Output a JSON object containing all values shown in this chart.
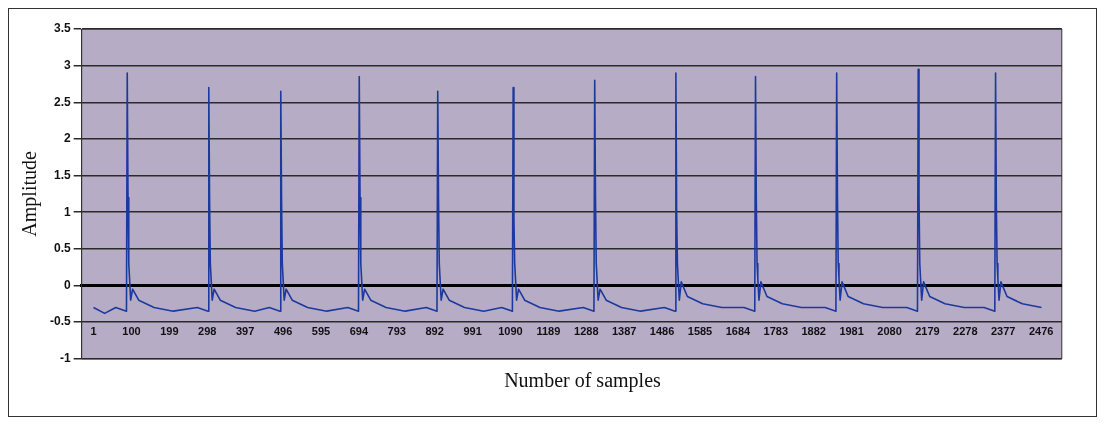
{
  "chart_data": {
    "type": "line",
    "xlabel": "Number of samples",
    "ylabel": "Amplitude",
    "xlim": [
      -30,
      2530
    ],
    "xticks": [
      1,
      100,
      199,
      298,
      397,
      496,
      595,
      694,
      793,
      892,
      991,
      1090,
      1189,
      1288,
      1387,
      1486,
      1585,
      1684,
      1783,
      1882,
      1981,
      2080,
      2179,
      2278,
      2377,
      2476
    ],
    "ylim": [
      -1,
      3.5
    ],
    "yticks": [
      -1,
      -0.5,
      0,
      0.5,
      1,
      1.5,
      2,
      2.5,
      3,
      3.5
    ],
    "grid": "y",
    "legend": false,
    "series": [
      {
        "color": "#1c3a9e",
        "x": [
          1,
          30,
          59,
          87,
          89,
          91,
          93,
          95,
          98,
          103,
          119,
          159,
          209,
          272,
          300,
          302,
          304,
          306,
          308,
          311,
          316,
          332,
          372,
          422,
          460,
          488,
          490,
          492,
          494,
          496,
          499,
          504,
          520,
          560,
          610,
          665,
          693,
          695,
          697,
          699,
          701,
          704,
          709,
          725,
          765,
          815,
          870,
          898,
          900,
          902,
          904,
          906,
          909,
          914,
          930,
          970,
          1020,
          1067,
          1095,
          1097,
          1099,
          1101,
          1103,
          1106,
          1111,
          1127,
          1167,
          1217,
          1280,
          1308,
          1310,
          1312,
          1314,
          1316,
          1319,
          1324,
          1340,
          1380,
          1430,
          1492,
          1520,
          1522,
          1524,
          1526,
          1528,
          1531,
          1536,
          1552,
          1592,
          1642,
          1700,
          1728,
          1730,
          1732,
          1734,
          1736,
          1739,
          1744,
          1760,
          1800,
          1850,
          1912,
          1940,
          1942,
          1944,
          1946,
          1948,
          1951,
          1956,
          1972,
          2012,
          2062,
          2125,
          2153,
          2155,
          2157,
          2159,
          2161,
          2164,
          2169,
          2185,
          2225,
          2275,
          2327,
          2355,
          2357,
          2359,
          2361,
          2363,
          2366,
          2371,
          2387,
          2427,
          2477
        ],
        "values": [
          -0.3,
          -0.38,
          -0.3,
          -0.35,
          2.9,
          1.2,
          0.3,
          0.1,
          -0.2,
          -0.05,
          -0.2,
          -0.3,
          -0.35,
          -0.3,
          -0.35,
          2.7,
          1.2,
          0.3,
          0.1,
          -0.2,
          -0.05,
          -0.2,
          -0.3,
          -0.35,
          -0.3,
          -0.35,
          2.65,
          1.2,
          0.3,
          0.1,
          -0.2,
          -0.05,
          -0.2,
          -0.3,
          -0.35,
          -0.3,
          -0.35,
          2.85,
          1.2,
          0.3,
          0.1,
          -0.2,
          -0.05,
          -0.2,
          -0.3,
          -0.35,
          -0.3,
          -0.35,
          2.65,
          1.2,
          0.3,
          0.1,
          -0.2,
          -0.05,
          -0.2,
          -0.3,
          -0.35,
          -0.3,
          -0.35,
          2.7,
          0.9,
          0.3,
          0.1,
          -0.2,
          -0.05,
          -0.2,
          -0.3,
          -0.35,
          -0.3,
          -0.35,
          2.8,
          1.2,
          0.3,
          0.1,
          -0.2,
          -0.05,
          -0.2,
          -0.3,
          -0.35,
          -0.3,
          -0.35,
          2.9,
          1.0,
          0.3,
          0.1,
          -0.2,
          0.05,
          -0.15,
          -0.25,
          -0.3,
          -0.3,
          -0.35,
          2.85,
          1.2,
          0.3,
          0.1,
          -0.2,
          0.05,
          -0.15,
          -0.25,
          -0.3,
          -0.3,
          -0.35,
          2.9,
          1.2,
          0.3,
          0.1,
          -0.2,
          0.05,
          -0.15,
          -0.25,
          -0.3,
          -0.3,
          -0.35,
          2.95,
          1.2,
          0.3,
          0.1,
          -0.2,
          0.05,
          -0.15,
          -0.25,
          -0.3,
          -0.3,
          -0.35,
          2.9,
          1.1,
          0.3,
          0.1,
          -0.2,
          0.05,
          -0.15,
          -0.25,
          -0.3
        ]
      }
    ]
  }
}
